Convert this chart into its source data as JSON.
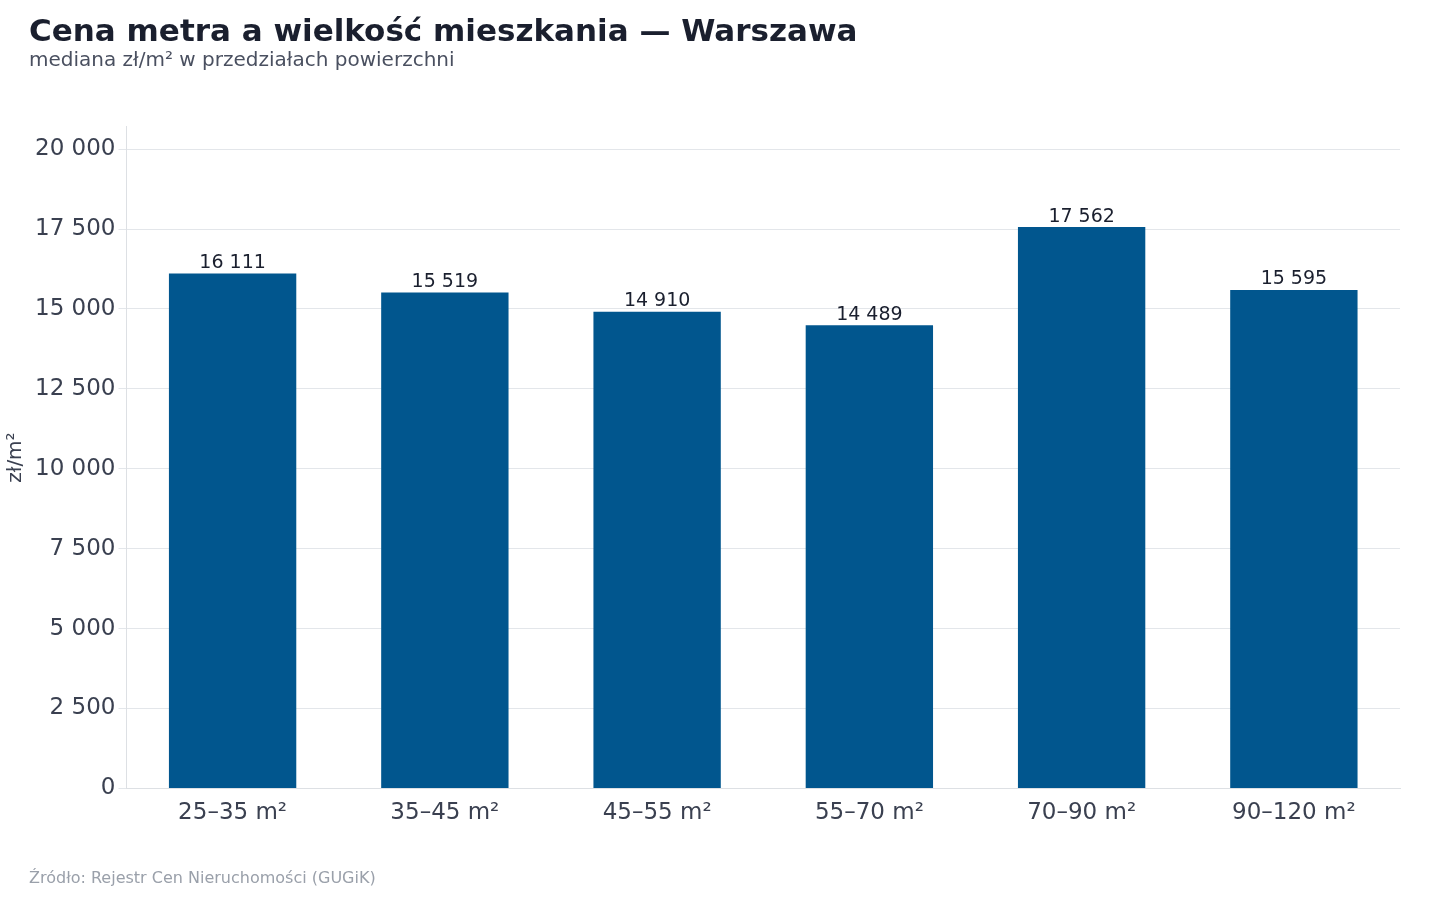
{
  "chart_data": {
    "type": "bar",
    "title": "Cena metra a wielkość mieszkania — Warszawa",
    "subtitle": "mediana zł/m² w przedziałach powierzchni",
    "ylabel": "zł/m²",
    "categories": [
      "25–35 m²",
      "35–45 m²",
      "45–55 m²",
      "55–70 m²",
      "70–90 m²",
      "90–120 m²"
    ],
    "values": [
      16111,
      15519,
      14910,
      14489,
      17562,
      15595
    ],
    "value_labels": [
      "16 111",
      "15 519",
      "14 910",
      "14 489",
      "17 562",
      "15 595"
    ],
    "color": "#01568e",
    "ylim": [
      0,
      20700
    ],
    "yticks": [
      {
        "value": 0,
        "label": "0"
      },
      {
        "value": 2500,
        "label": "2 500"
      },
      {
        "value": 5000,
        "label": "5 000"
      },
      {
        "value": 7500,
        "label": "7 500"
      },
      {
        "value": 10000,
        "label": "10 000"
      },
      {
        "value": 12500,
        "label": "12 500"
      },
      {
        "value": 15000,
        "label": "15 000"
      },
      {
        "value": 17500,
        "label": "17 500"
      },
      {
        "value": 20000,
        "label": "20 000"
      }
    ],
    "grid": "y",
    "legend": false,
    "annotations": [
      "Źródło: Rejestr Cen Nieruchomości (GUGiK)"
    ]
  }
}
